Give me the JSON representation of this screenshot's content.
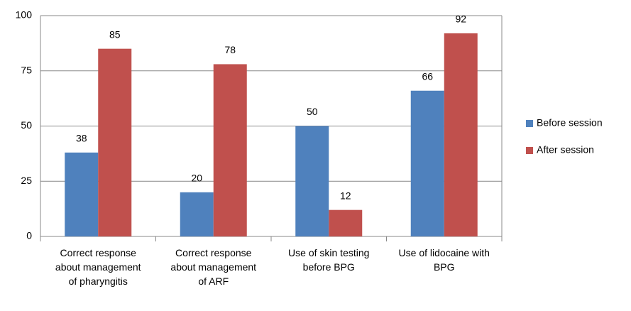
{
  "chart_data": {
    "type": "bar",
    "categories": [
      "Correct response about management of pharyngitis",
      "Correct response about management of ARF",
      "Use of skin testing before BPG",
      "Use of lidocaine with BPG"
    ],
    "series": [
      {
        "name": "Before session",
        "color": "#4f81bd",
        "values": [
          38,
          20,
          50,
          66
        ]
      },
      {
        "name": "After session",
        "color": "#c0504d",
        "values": [
          85,
          78,
          12,
          92
        ]
      }
    ],
    "ylim": [
      0,
      100
    ],
    "yticks": [
      0,
      25,
      50,
      75,
      100
    ],
    "grid": true,
    "legend": "right"
  }
}
